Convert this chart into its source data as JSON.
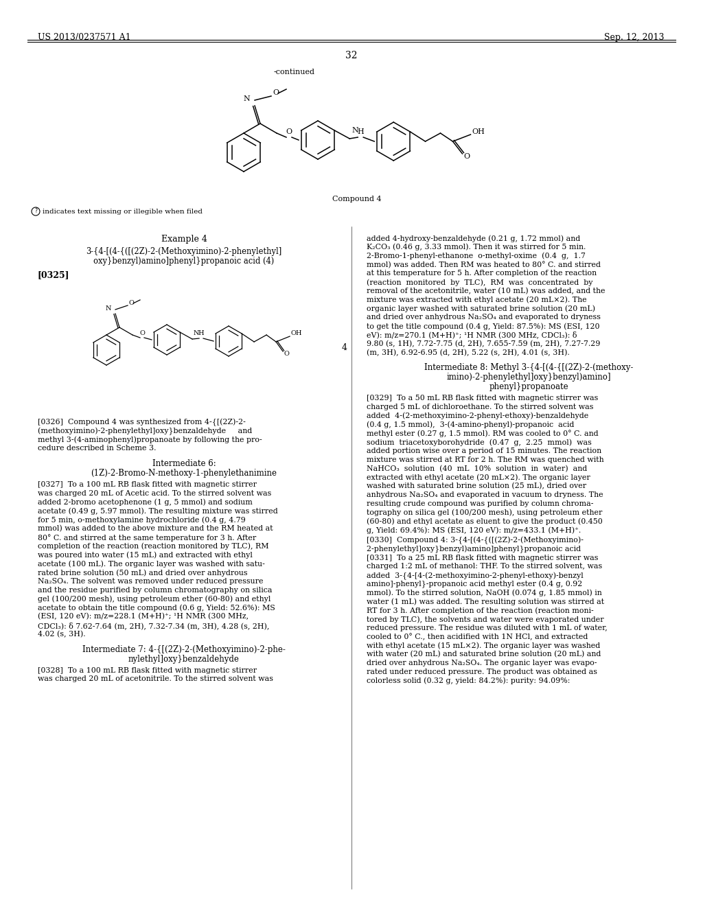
{
  "header_left": "US 2013/0237571 A1",
  "header_right": "Sep. 12, 2013",
  "page_number": "32",
  "bg_color": "#ffffff"
}
